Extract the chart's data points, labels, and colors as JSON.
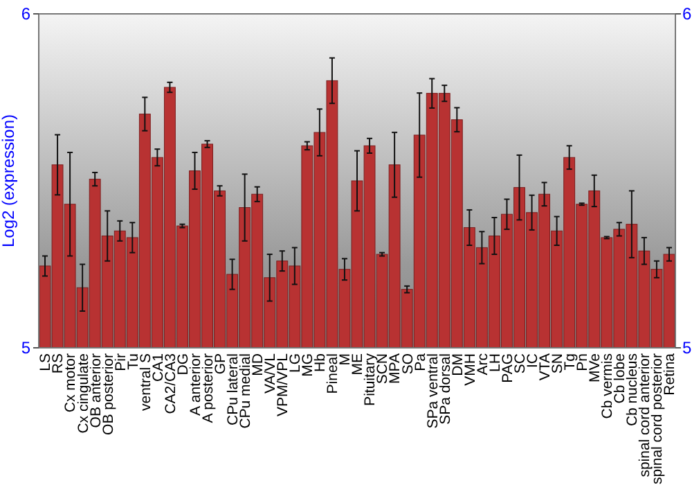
{
  "chart_data": {
    "type": "bar",
    "ylabel": "Log2 (expression)",
    "categories": [
      "LS",
      "RS",
      "Cx motor",
      "Cx cingulate",
      "OB anterior",
      "OB posterior",
      "Pir",
      "Tu",
      "ventral S",
      "CA1",
      "CA2/CA3",
      "DG",
      "A anterior",
      "A posterior",
      "GP",
      "CPu lateral",
      "CPu medial",
      "MD",
      "VA/VL",
      "VPM/VPL",
      "LG",
      "MG",
      "Hb",
      "Pineal",
      "M",
      "ME",
      "Pituitary",
      "SCN",
      "MPA",
      "SO",
      "Pa",
      "SPa ventral",
      "SPa dorsal",
      "DM",
      "VMH",
      "Arc",
      "LH",
      "PAG",
      "SC",
      "IC",
      "VTA",
      "SN",
      "Tg",
      "Pn",
      "MVe",
      "Cb vermis",
      "Cb lobe",
      "Cb nucleus",
      "spinal cord anterior",
      "spinal cord posterior",
      "Retina"
    ],
    "values": [
      5.245,
      5.548,
      5.43,
      5.18,
      5.505,
      5.335,
      5.35,
      5.33,
      5.7,
      5.57,
      5.78,
      5.365,
      5.53,
      5.61,
      5.47,
      5.22,
      5.42,
      5.46,
      5.21,
      5.26,
      5.245,
      5.605,
      5.645,
      5.8,
      5.235,
      5.5,
      5.605,
      5.28,
      5.548,
      5.175,
      5.637,
      5.762,
      5.762,
      5.683,
      5.36,
      5.3,
      5.335,
      5.4,
      5.48,
      5.405,
      5.46,
      5.35,
      5.57,
      5.43,
      5.47,
      5.33,
      5.355,
      5.37,
      5.29,
      5.235,
      5.28
    ],
    "errors": [
      0.03,
      0.09,
      0.155,
      0.07,
      0.02,
      0.075,
      0.03,
      0.045,
      0.05,
      0.025,
      0.015,
      0.005,
      0.055,
      0.01,
      0.015,
      0.045,
      0.1,
      0.022,
      0.07,
      0.03,
      0.055,
      0.012,
      0.07,
      0.068,
      0.032,
      0.09,
      0.022,
      0.005,
      0.097,
      0.01,
      0.126,
      0.044,
      0.024,
      0.036,
      0.053,
      0.048,
      0.055,
      0.045,
      0.097,
      0.052,
      0.035,
      0.043,
      0.035,
      0.003,
      0.047,
      0.003,
      0.02,
      0.1,
      0.04,
      0.025,
      0.02
    ],
    "color": "#b83232",
    "ylim": [
      5,
      6
    ],
    "yticks": [
      5,
      6
    ],
    "y2lim": [
      5,
      6
    ],
    "y2ticks": [
      5,
      6
    ]
  }
}
